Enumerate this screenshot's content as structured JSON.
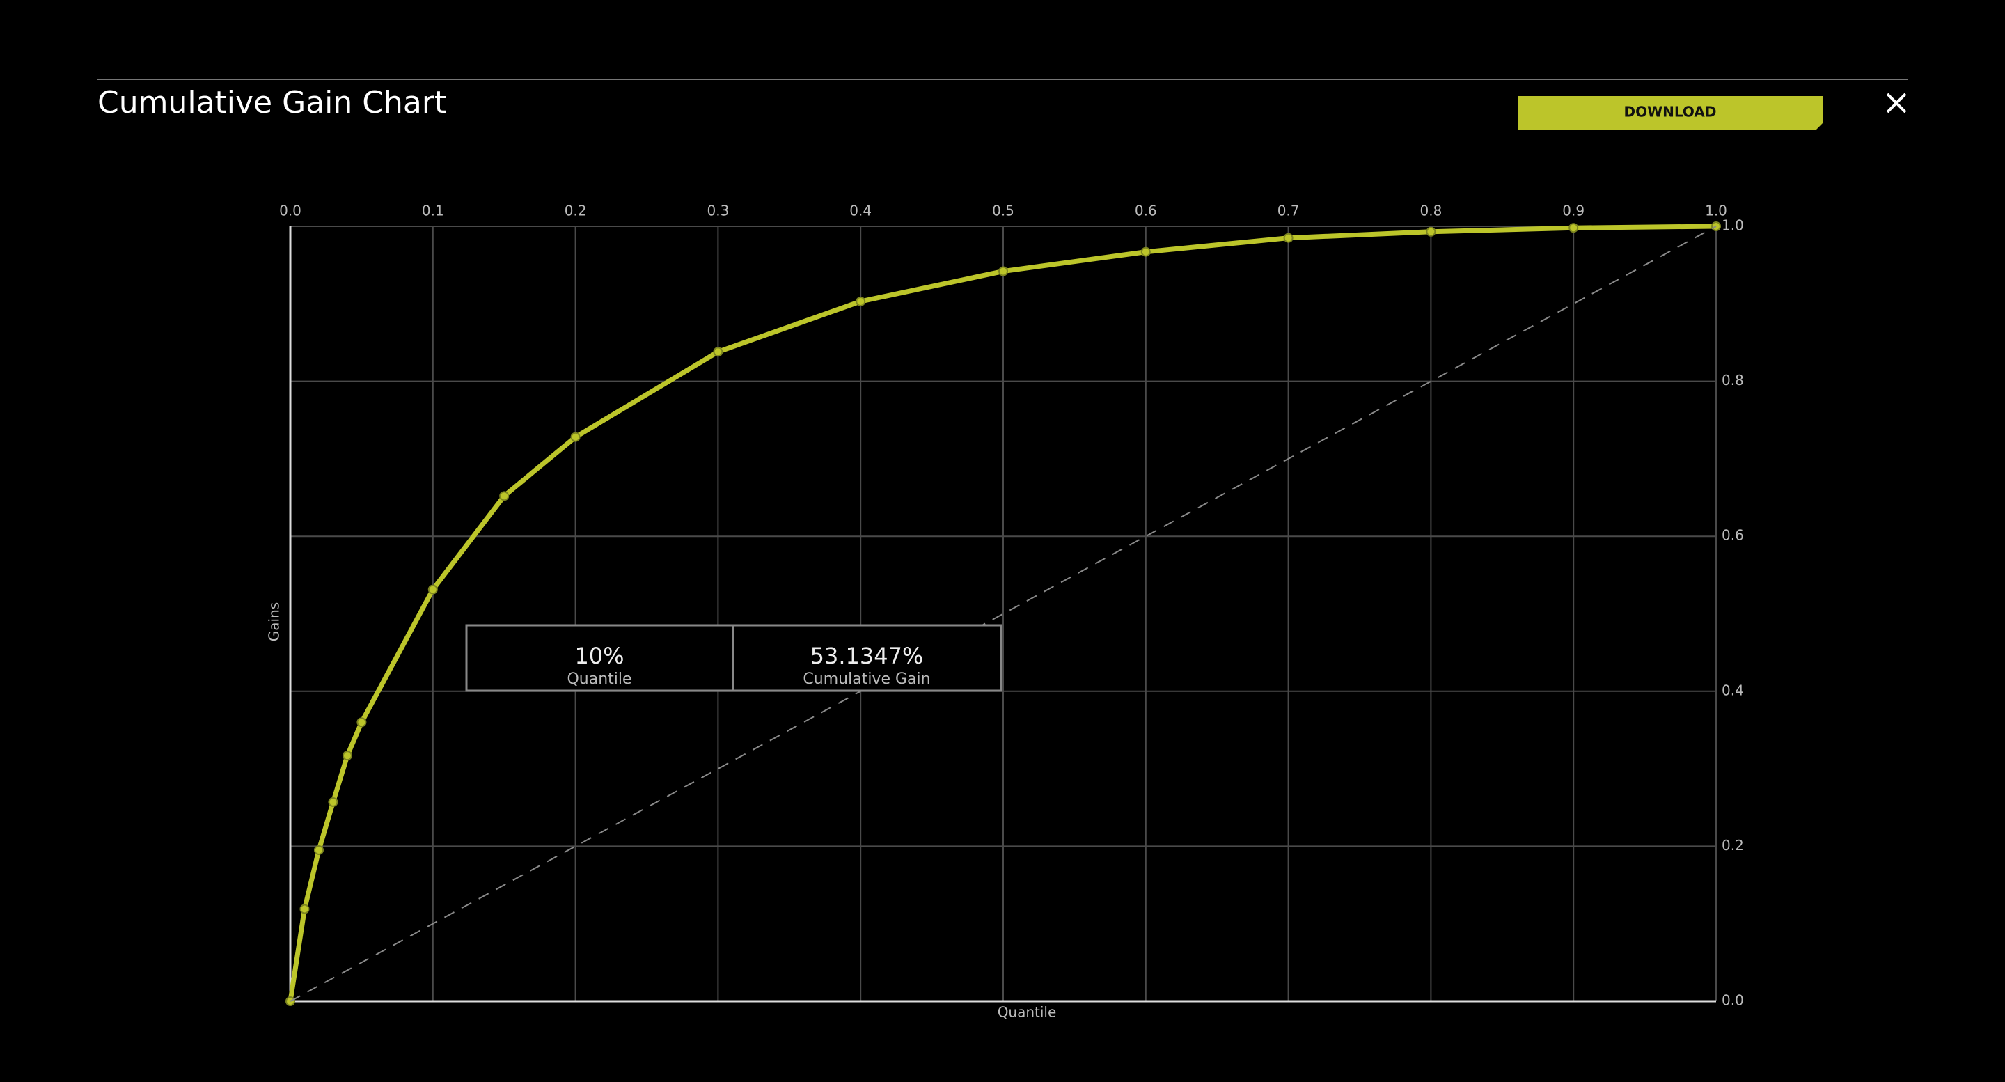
{
  "header": {
    "title": "Cumulative Gain Chart",
    "button": "DOWNLOAD"
  },
  "chart_data": {
    "type": "line",
    "xlabel": "Quantile",
    "ylabel": "Gains",
    "series": [
      {
        "color": "#bcc52a",
        "x": [
          0,
          0.01,
          0.02,
          0.03,
          0.04,
          0.05,
          0.1,
          0.15,
          0.2,
          0.3,
          0.4,
          0.5,
          0.6,
          0.7,
          0.8,
          0.9,
          1.0
        ],
        "values": [
          0,
          0.119,
          0.195,
          0.257,
          0.317,
          0.36,
          0.531347,
          0.652,
          0.728,
          0.838,
          0.903,
          0.942,
          0.967,
          0.985,
          0.993,
          0.998,
          1.0
        ]
      },
      {
        "color": "#8a8a8a",
        "dash": true,
        "x": [
          0,
          1
        ],
        "values": [
          0,
          1
        ]
      }
    ],
    "xlim": [
      0,
      1
    ],
    "ylim": [
      0,
      1
    ],
    "xticks": [
      {
        "value": 0,
        "label": "0.0"
      },
      0.1,
      0.2,
      0.3,
      0.4,
      0.5,
      0.6,
      0.7,
      0.8,
      0.9,
      {
        "value": 1,
        "label": "1.0"
      }
    ],
    "yticks": [
      {
        "value": 0,
        "label": "0.0"
      },
      0.2,
      0.4,
      0.6,
      0.8,
      {
        "value": 1,
        "label": "1.0"
      }
    ],
    "grid": true,
    "tooltip": {
      "values": [
        "10%",
        "53.1347%"
      ],
      "labels": [
        "Quantile",
        "Cumulative Gain"
      ]
    }
  }
}
